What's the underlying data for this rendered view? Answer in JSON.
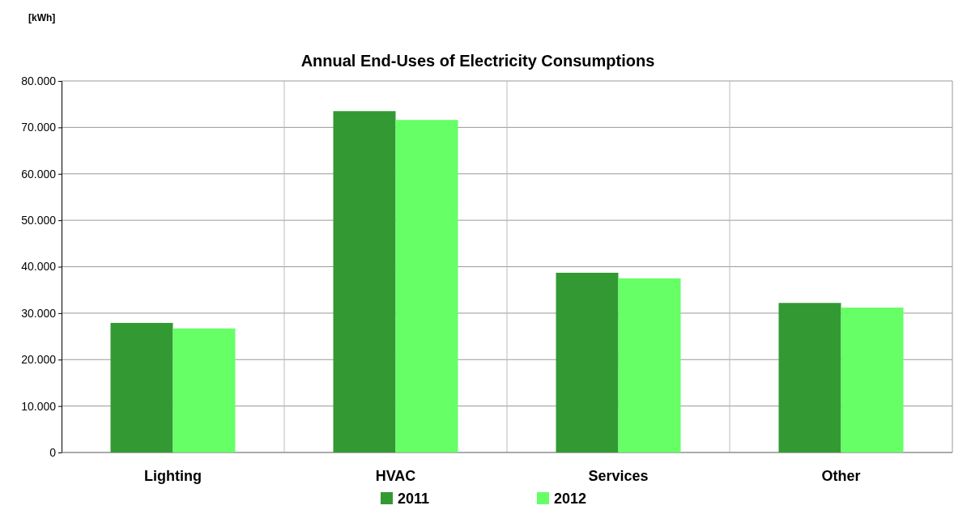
{
  "chart_data": {
    "type": "bar",
    "title": "Annual End-Uses of Electricity Consumptions",
    "annotations": [
      "[kWh]"
    ],
    "categories": [
      "Lighting",
      "HVAC",
      "Services",
      "Other"
    ],
    "series": [
      {
        "name": "2011",
        "color": "#339933",
        "values": [
          27900,
          73500,
          38700,
          32200
        ]
      },
      {
        "name": "2012",
        "color": "#66ff66",
        "values": [
          26700,
          71600,
          37500,
          31200
        ]
      }
    ],
    "ylim": [
      0,
      80000
    ],
    "yticks": [
      0,
      {
        "value": 10000,
        "label": "10.000"
      },
      {
        "value": 20000,
        "label": "20.000"
      },
      {
        "value": 30000,
        "label": "30.000"
      },
      {
        "value": 40000,
        "label": "40.000"
      },
      {
        "value": 50000,
        "label": "50.000"
      },
      {
        "value": 60000,
        "label": "60.000"
      },
      {
        "value": 70000,
        "label": "70.000"
      },
      {
        "value": 80000,
        "label": "80.000"
      }
    ],
    "grid": true,
    "legend": "bottom"
  }
}
